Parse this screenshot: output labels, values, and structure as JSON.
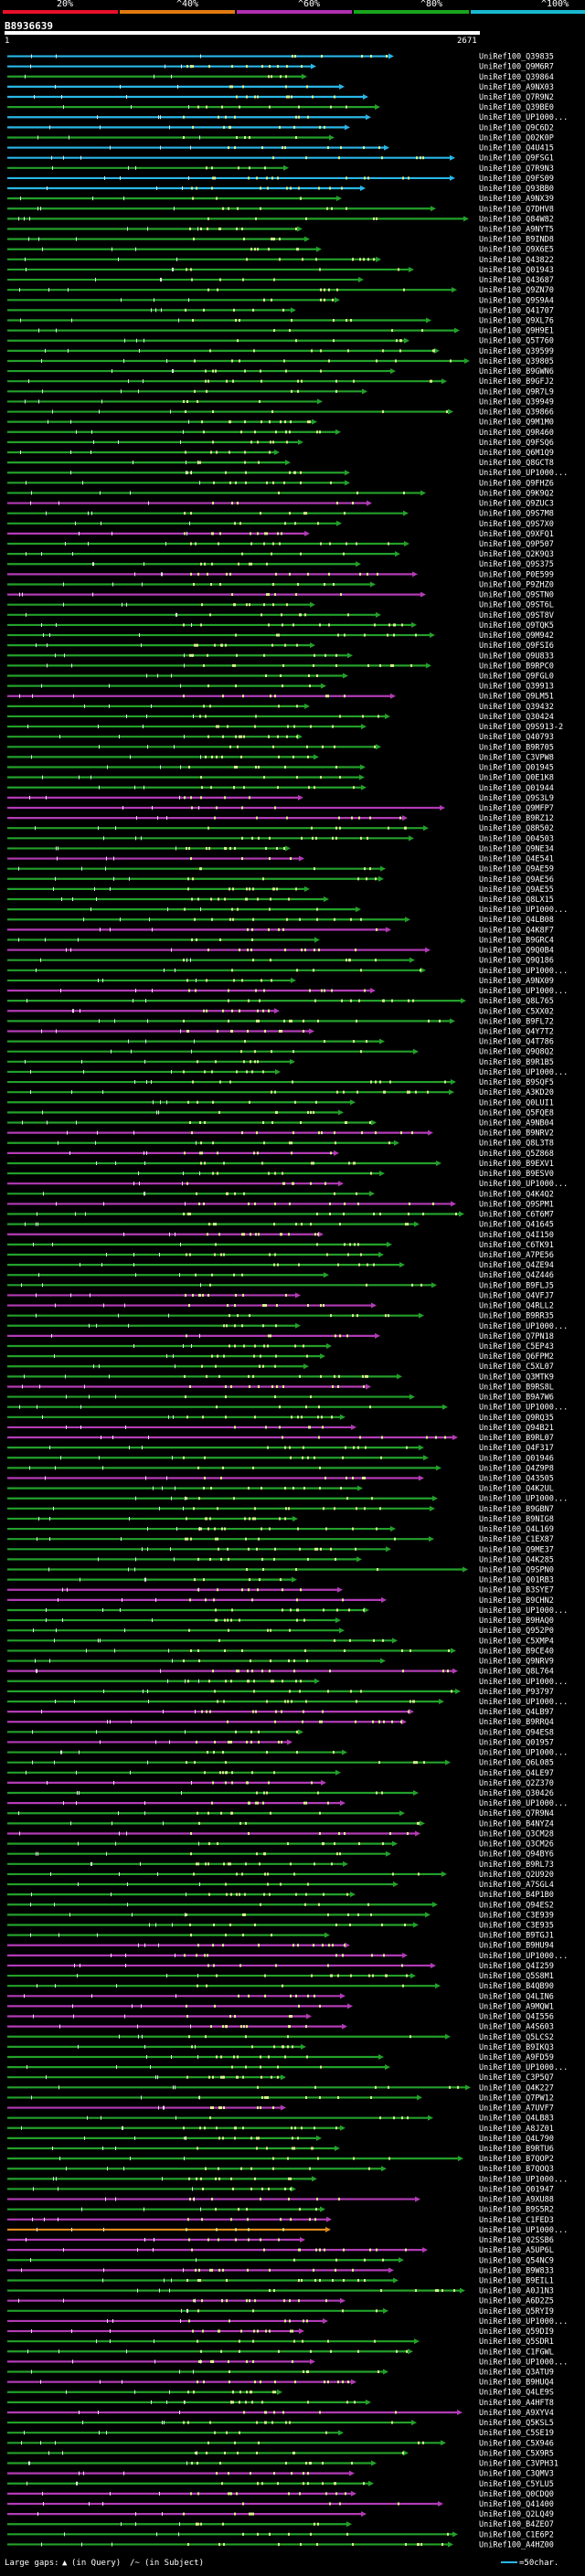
{
  "legend": [
    {
      "label": "20%",
      "color": "#e8102a"
    },
    {
      "label": "^40%",
      "color": "#e07a10"
    },
    {
      "label": "^60%",
      "color": "#b02fb0"
    },
    {
      "label": "^80%",
      "color": "#18a41c"
    },
    {
      "label": "^100%",
      "color": "#18b8d0"
    }
  ],
  "query": {
    "id": "B8936639",
    "start": "1",
    "end": "2671"
  },
  "colors": {
    "cyan": "#29b6e6",
    "green": "#23a02a",
    "magenta": "#b23bb5",
    "orange": "#e08a1a",
    "dot": "#d8f08c",
    "query": "#ffffff"
  },
  "hit_names": [
    "UniRef100_Q39835",
    "UniRef100_Q9M6R7",
    "UniRef100_Q39864",
    "UniRef100_A9NX03",
    "UniRef100_Q7R9N2",
    "UniRef100_Q39BE0",
    "UniRef100_UP1000...",
    "UniRef100_Q9C6D2",
    "UniRef100_Q02K0P",
    "UniRef100_Q4U415",
    "UniRef100_Q9FSG1",
    "UniRef100_Q7R9N3",
    "UniRef100_Q9FS09",
    "UniRef100_Q93BB0",
    "UniRef100_A9NX39",
    "UniRef100_Q7DHV8",
    "UniRef100_Q84W82",
    "UniRef100_A9NYT5",
    "UniRef100_B9IND8",
    "UniRef100_Q9X6E5",
    "UniRef100_Q43822",
    "UniRef100_Q01943",
    "UniRef100_Q43687",
    "UniRef100_Q9ZN70",
    "UniRef100_Q9S9A4",
    "UniRef100_Q41707",
    "UniRef100_Q9XL76",
    "UniRef100_Q9H9E1",
    "UniRef100_Q5T760",
    "UniRef100_Q39599",
    "UniRef100_Q39805",
    "UniRef100_B9GWN6",
    "UniRef100_B9GFJ2",
    "UniRef100_Q9R7L9",
    "UniRef100_Q39949",
    "UniRef100_Q39866",
    "UniRef100_Q9M1M0",
    "UniRef100_Q9R460",
    "UniRef100_Q9FSQ6",
    "UniRef100_Q6M1Q9",
    "UniRef100_Q8GCT8",
    "UniRef100_UP1000...",
    "UniRef100_Q9FHZ6",
    "UniRef100_Q9K9Q2",
    "UniRef100_Q9ZUC3",
    "UniRef100_Q9S7M8",
    "UniRef100_Q9S7X0",
    "UniRef100_Q9XFQ1",
    "UniRef100_Q9P507",
    "UniRef100_Q2K9Q3",
    "UniRef100_Q9S375",
    "UniRef100_P0E599",
    "UniRef100_P9ZHZ0",
    "UniRef100_Q9STN0",
    "UniRef100_Q9ST6L",
    "UniRef100_Q9ST8V",
    "UniRef100_Q9TQK5",
    "UniRef100_Q9M942",
    "UniRef100_Q9FSI6",
    "UniRef100_Q9U833",
    "UniRef100_B9RPC0",
    "UniRef100_Q9FGL0",
    "UniRef100_Q39913",
    "UniRef100_Q9LM51",
    "UniRef100_Q39432",
    "UniRef100_Q30424",
    "UniRef100_Q9S913-2",
    "UniRef100_Q40793",
    "UniRef100_B9R705",
    "UniRef100_C3VPW8",
    "UniRef100_Q01945",
    "UniRef100_Q0E1K8",
    "UniRef100_Q01944",
    "UniRef100_Q9S3L9",
    "UniRef100_Q9MFP7",
    "UniRef100_B9RZ12",
    "UniRef100_Q8R502",
    "UniRef100_Q04503",
    "UniRef100_Q9NE34",
    "UniRef100_Q4E541",
    "UniRef100_Q9AE59",
    "UniRef100_Q9AE56",
    "UniRef100_Q9AE55",
    "UniRef100_Q8LX15",
    "UniRef100_UP1000...",
    "UniRef100_Q4LB08",
    "UniRef100_Q4K8F7",
    "UniRef100_B9GRC4",
    "UniRef100_Q9Q0B4",
    "UniRef100_Q9Q186",
    "UniRef100_UP1000...",
    "UniRef100_A9NX09",
    "UniRef100_UP1000...",
    "UniRef100_Q8L765",
    "UniRef100_C5XX02",
    "UniRef100_B9FL72",
    "UniRef100_Q4Y7T2",
    "UniRef100_Q4T786",
    "UniRef100_Q9Q8Q2",
    "UniRef100_B9R1B5",
    "UniRef100_UP1000...",
    "UniRef100_B9SQF5",
    "UniRef100_A3KD20",
    "UniRef100_Q0LUI1",
    "UniRef100_Q5FQE8",
    "UniRef100_A9NB04",
    "UniRef100_B9NRV2",
    "UniRef100_Q8L3T8",
    "UniRef100_Q5Z868",
    "UniRef100_B9EXV1",
    "UniRef100_B9ESV0",
    "UniRef100_UP1000...",
    "UniRef100_Q4K4Q2",
    "UniRef100_Q9SPM1",
    "UniRef100_C6T6M7",
    "UniRef100_Q41645",
    "UniRef100_Q4I150",
    "UniRef100_C6TK91",
    "UniRef100_A7PE56",
    "UniRef100_Q4ZE94",
    "UniRef100_Q4Z446",
    "UniRef100_B9FLJ5",
    "UniRef100_Q4VFJ7",
    "UniRef100_Q4RLL2",
    "UniRef100_B9RR35",
    "UniRef100_UP1000...",
    "UniRef100_Q7PN18",
    "UniRef100_C5EP43",
    "UniRef100_Q6FPM2",
    "UniRef100_C5XL07",
    "UniRef100_Q3MTK9",
    "UniRef100_B9RS8L",
    "UniRef100_B9A7W6",
    "UniRef100_UP1000...",
    "UniRef100_Q9RQ35",
    "UniRef100_Q94B21",
    "UniRef100_B9RL07",
    "UniRef100_Q4F317",
    "UniRef100_Q01946",
    "UniRef100_Q4Z9P8",
    "UniRef100_Q43505",
    "UniRef100_Q4K2UL",
    "UniRef100_UP1000...",
    "UniRef100_B9GBN7",
    "UniRef100_B9NIG8",
    "UniRef100_Q4L169",
    "UniRef100_C1EX87",
    "UniRef100_Q9ME37",
    "UniRef100_Q4K285",
    "UniRef100_Q9SPN0",
    "UniRef100_Q01RB3",
    "UniRef100_B3SYE7",
    "UniRef100_B9CHN2",
    "UniRef100_UP1000...",
    "UniRef100_B9HAQ0",
    "UniRef100_Q952P0",
    "UniRef100_C5XMP4",
    "UniRef100_B9CE40",
    "UniRef100_Q9NRV9",
    "UniRef100_Q8L764",
    "UniRef100_UP1000...",
    "UniRef100_P93797",
    "UniRef100_UP1000...",
    "UniRef100_Q4LB97",
    "UniRef100_B9RRQ4",
    "UniRef100_Q94ES8",
    "UniRef100_Q01957",
    "UniRef100_UP1000...",
    "UniRef100_Q6L085",
    "UniRef100_Q4LE97",
    "UniRef100_Q2Z370",
    "UniRef100_Q30426",
    "UniRef100_UP1000...",
    "UniRef100_Q7R9N4",
    "UniRef100_B4NYZ4",
    "UniRef100_Q3CM28",
    "UniRef100_Q3CM26",
    "UniRef100_Q94BY6",
    "UniRef100_B9RL73",
    "UniRef100_Q2U920",
    "UniRef100_A7SGL4",
    "UniRef100_B4P1B0",
    "UniRef100_Q94ES2",
    "UniRef100_C3E939",
    "UniRef100_C3E935",
    "UniRef100_B9TGJ1",
    "UniRef100_B9HU94",
    "UniRef100_UP1000...",
    "UniRef100_Q4I259",
    "UniRef100_Q5S8M1",
    "UniRef100_B4QB90",
    "UniRef100_Q4LIN6",
    "UniRef100_A9MQW1",
    "UniRef100_Q4I556",
    "UniRef100_A4S603",
    "UniRef100_Q5LCS2",
    "UniRef100_B9IKQ3",
    "UniRef100_A9FD59",
    "UniRef100_UP1000...",
    "UniRef100_C3P5Q7",
    "UniRef100_Q4K227",
    "UniRef100_Q7PW12",
    "UniRef100_A7UVF7",
    "UniRef100_Q4LB83",
    "UniRef100_A8JZ01",
    "UniRef100_Q4L790",
    "UniRef100_B9RTU6",
    "UniRef100_B7QOP2",
    "UniRef100_B7QOQ3",
    "UniRef100_UP1000...",
    "UniRef100_Q01947",
    "UniRef100_A9XU88",
    "UniRef100_B9S5R2",
    "UniRef100_C1FED3",
    "UniRef100_UP1000...",
    "UniRef100_Q2SSB6",
    "UniRef100_A5UP6L",
    "UniRef100_Q54NC9",
    "UniRef100_B9W833",
    "UniRef100_B9EIL1",
    "UniRef100_A0J1N3",
    "UniRef100_A6D2Z5",
    "UniRef100_Q5RYI9",
    "UniRef100_UP1000...",
    "UniRef100_Q59DI9",
    "UniRef100_Q5SDR1",
    "UniRef100_C1FGWL",
    "UniRef100_UP1000...",
    "UniRef100_Q3ATU9",
    "UniRef100_B9HUQ4",
    "UniRef100_Q4LE9S",
    "UniRef100_A4HFT8",
    "UniRef100_A9XYV4",
    "UniRef100_Q5KSL5",
    "UniRef100_C5SE19",
    "UniRef100_C5X946",
    "UniRef100_C5X9R5",
    "UniRef100_C3VPH31",
    "UniRef100_C3QMV3",
    "UniRef100_C5YLU5",
    "UniRef100_Q0CDQ0",
    "UniRef100_Q41400",
    "UniRef100_Q2LQ49",
    "UniRef100_B4ZEO7",
    "UniRef100_C1E6P2",
    "UniRef100_A4HZ00"
  ],
  "footer": {
    "gaps_label": "Large gaps:",
    "gap_in_query": "(in Query)",
    "gap_in_subject": "(in Subject)",
    "scale_label": "=50char."
  }
}
